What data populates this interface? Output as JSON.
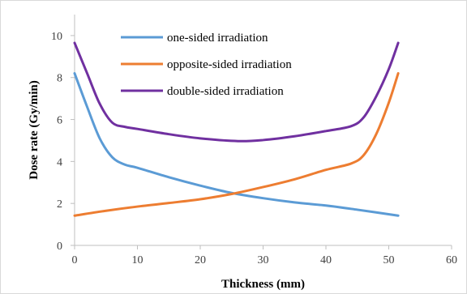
{
  "chart_data": {
    "type": "line",
    "title": "",
    "xlabel": "Thickness (mm)",
    "ylabel": "Dose rate (Gy/min)",
    "xlim": [
      0,
      60
    ],
    "ylim": [
      0,
      11
    ],
    "x_ticks": [
      "0",
      "10",
      "20",
      "30",
      "40",
      "50",
      "60"
    ],
    "y_ticks": [
      "0",
      "2",
      "4",
      "6",
      "8",
      "10"
    ],
    "grid": false,
    "legend_position": "top-center",
    "series": [
      {
        "name": "one-sided irradiation",
        "color": "#5b9bd5",
        "points": [
          [
            0,
            8.2
          ],
          [
            2,
            6.6
          ],
          [
            4,
            5.1
          ],
          [
            6,
            4.2
          ],
          [
            8,
            3.85
          ],
          [
            10,
            3.7
          ],
          [
            15,
            3.25
          ],
          [
            20,
            2.85
          ],
          [
            25,
            2.5
          ],
          [
            30,
            2.25
          ],
          [
            35,
            2.05
          ],
          [
            40,
            1.9
          ],
          [
            45,
            1.7
          ],
          [
            51.5,
            1.42
          ]
        ]
      },
      {
        "name": "opposite-sided irradiation",
        "color": "#ed7d31",
        "points": [
          [
            0,
            1.42
          ],
          [
            5,
            1.65
          ],
          [
            10,
            1.85
          ],
          [
            15,
            2.02
          ],
          [
            20,
            2.2
          ],
          [
            25,
            2.45
          ],
          [
            30,
            2.78
          ],
          [
            35,
            3.15
          ],
          [
            40,
            3.6
          ],
          [
            44,
            3.9
          ],
          [
            46,
            4.3
          ],
          [
            48,
            5.3
          ],
          [
            50,
            6.8
          ],
          [
            51.5,
            8.2
          ]
        ]
      },
      {
        "name": "double-sided irradiation",
        "color": "#7030a0",
        "points": [
          [
            0,
            9.65
          ],
          [
            2,
            8.2
          ],
          [
            4,
            6.75
          ],
          [
            6,
            5.85
          ],
          [
            8,
            5.65
          ],
          [
            10,
            5.55
          ],
          [
            15,
            5.3
          ],
          [
            20,
            5.1
          ],
          [
            26,
            4.97
          ],
          [
            30,
            5.02
          ],
          [
            35,
            5.2
          ],
          [
            40,
            5.45
          ],
          [
            44,
            5.68
          ],
          [
            46,
            6.1
          ],
          [
            48,
            7.1
          ],
          [
            50,
            8.4
          ],
          [
            51.5,
            9.65
          ]
        ]
      }
    ]
  }
}
